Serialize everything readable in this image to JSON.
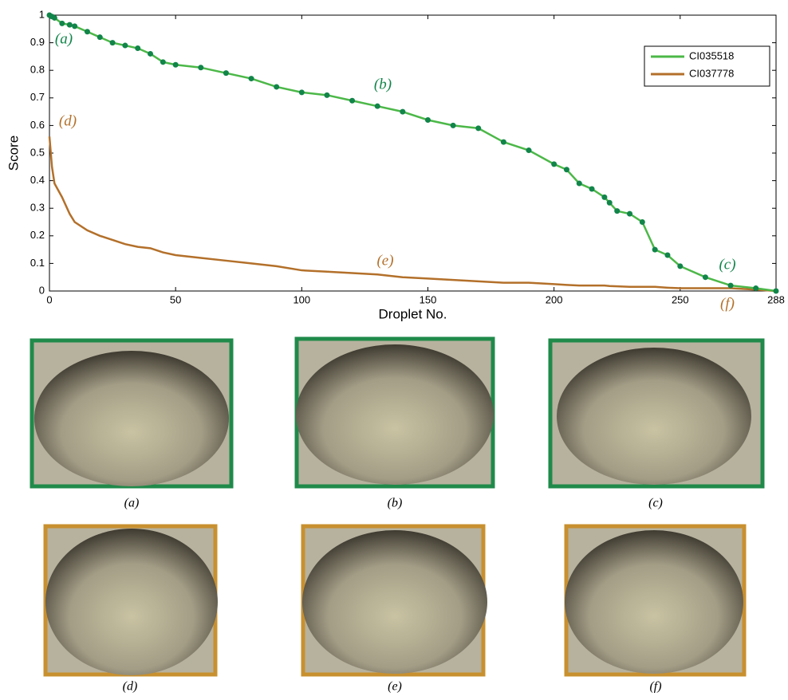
{
  "chart_data": {
    "type": "line",
    "xlabel": "Droplet No.",
    "ylabel": "Score",
    "x": [
      0,
      1,
      2,
      5,
      8,
      10,
      15,
      20,
      25,
      30,
      35,
      40,
      45,
      50,
      60,
      70,
      80,
      90,
      100,
      110,
      120,
      130,
      140,
      150,
      160,
      170,
      180,
      190,
      200,
      205,
      210,
      215,
      220,
      222,
      225,
      230,
      235,
      240,
      245,
      250,
      260,
      270,
      280,
      288
    ],
    "series": [
      {
        "name": "CI035518",
        "color": "#4cb848",
        "marker_color": "#11854a",
        "values": [
          1.0,
          0.995,
          0.99,
          0.97,
          0.965,
          0.96,
          0.94,
          0.92,
          0.9,
          0.89,
          0.88,
          0.86,
          0.83,
          0.82,
          0.81,
          0.79,
          0.77,
          0.74,
          0.72,
          0.71,
          0.69,
          0.67,
          0.65,
          0.62,
          0.6,
          0.59,
          0.54,
          0.51,
          0.46,
          0.44,
          0.39,
          0.37,
          0.34,
          0.32,
          0.29,
          0.28,
          0.25,
          0.15,
          0.13,
          0.09,
          0.05,
          0.02,
          0.01,
          0
        ]
      },
      {
        "name": "CI037778",
        "color": "#b3702a",
        "values": [
          0.56,
          0.45,
          0.39,
          0.34,
          0.28,
          0.25,
          0.22,
          0.2,
          0.185,
          0.17,
          0.16,
          0.155,
          0.14,
          0.13,
          0.12,
          0.11,
          0.1,
          0.09,
          0.075,
          0.07,
          0.065,
          0.06,
          0.05,
          0.045,
          0.04,
          0.035,
          0.03,
          0.03,
          0.025,
          0.022,
          0.02,
          0.02,
          0.02,
          0.018,
          0.017,
          0.015,
          0.015,
          0.015,
          0.012,
          0.01,
          0.01,
          0.01,
          0.005,
          0
        ]
      }
    ],
    "xlim": [
      0,
      288
    ],
    "xticks": [
      0,
      50,
      100,
      150,
      200,
      250,
      288
    ],
    "ylim": [
      0,
      1
    ],
    "yticks": [
      0,
      0.1,
      0.2,
      0.3,
      0.4,
      0.5,
      0.6,
      0.7,
      0.8,
      0.9,
      1
    ],
    "legend": "upper right",
    "annotations": [
      "(a)",
      "(b)",
      "(c)",
      "(d)",
      "(e)",
      "(f)"
    ]
  },
  "panels": [
    "(a)",
    "(b)",
    "(c)",
    "(d)",
    "(e)",
    "(f)"
  ]
}
